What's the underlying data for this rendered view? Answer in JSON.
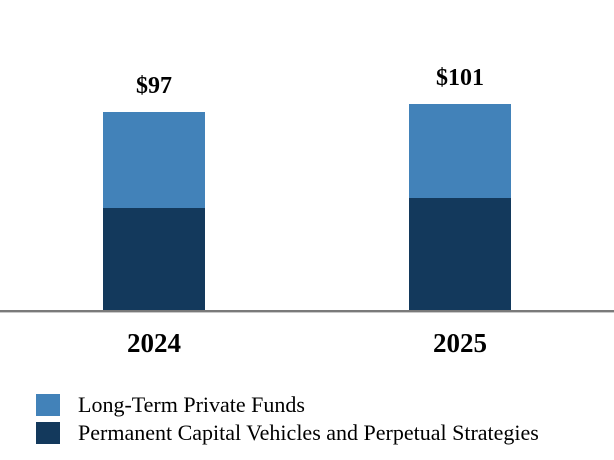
{
  "chart_data": {
    "type": "bar",
    "stacked": true,
    "title": "",
    "xlabel": "",
    "ylabel": "",
    "categories": [
      "2024",
      "2025"
    ],
    "series": [
      {
        "name": "Long-Term Private Funds",
        "color": "#4282B9",
        "values": [
          47,
          46
        ]
      },
      {
        "name": "Permanent Capital Vehicles and Perpetual Strategies",
        "color": "#13395C",
        "values": [
          50,
          55
        ]
      }
    ],
    "stack_order_top_to_bottom": [
      "Long-Term Private Funds",
      "Permanent Capital Vehicles and Perpetual Strategies"
    ],
    "totals": [
      97,
      101
    ],
    "total_labels": [
      "$97",
      "$101"
    ],
    "ylim": [
      0,
      110
    ],
    "grid": false,
    "y_axis_visible": false,
    "baseline_color": "#7a7a7a",
    "legend_position": "bottom-left",
    "text_color": "#000000"
  }
}
